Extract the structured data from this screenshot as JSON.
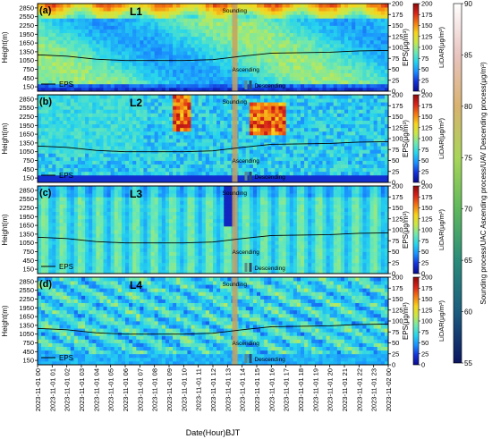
{
  "chart_data": {
    "type": "heatmap",
    "shared_y_ticks": [
      150,
      450,
      750,
      1050,
      1350,
      1650,
      1950,
      2250,
      2550,
      2850
    ],
    "shared_y_label": "Height(m)",
    "eps_ticks": [
      0,
      25,
      50,
      75,
      100,
      125,
      150,
      175,
      200
    ],
    "eps_axis_label": "EPS(μg/m³)",
    "lidar_ticks": [
      0,
      25,
      50,
      75,
      100,
      125,
      150,
      175,
      200
    ],
    "lidar_label": "LiDAR(μg/m³)",
    "xlabel": "Date(Hour)BJT",
    "x_ticks": [
      "2023-11-01 00",
      "2023-11-01 01",
      "2023-11-01 02",
      "2023-11-01 03",
      "2023-11-01 04",
      "2023-11-01 05",
      "2023-11-01 06",
      "2023-11-01 07",
      "2023-11-01 08",
      "2023-11-01 09",
      "2023-11-01 10",
      "2023-11-01 11",
      "2023-11-01 12",
      "2023-11-01 13",
      "2023-11-01 14",
      "2023-11-01 15",
      "2023-11-01 16",
      "2023-11-01 17",
      "2023-11-01 18",
      "2023-11-01 19",
      "2023-11-01 20",
      "2023-11-01 21",
      "2023-11-01 22",
      "2023-11-01 23",
      "2023-11-02 00"
    ],
    "right_colorbar": {
      "label": "Sounding process/UAC Ascending process/UAV Descending process(μg/m³)",
      "ticks": [
        55,
        60,
        65,
        70,
        75,
        80,
        85,
        90
      ],
      "range": [
        55,
        90
      ]
    },
    "panels": [
      {
        "tag": "(a)",
        "name": "L1",
        "band": "upper",
        "eps_hours": [
          0,
          2,
          4,
          6,
          8,
          10,
          12,
          14,
          16,
          18,
          20,
          22,
          24
        ],
        "eps_values": [
          83,
          80,
          73,
          70,
          70,
          70,
          72,
          80,
          87,
          88,
          89,
          92,
          93
        ]
      },
      {
        "tag": "(b)",
        "name": "L2",
        "band": "clouds",
        "eps_hours": [
          0,
          2,
          4,
          6,
          8,
          10,
          12,
          14,
          16,
          18,
          20,
          22,
          24
        ],
        "eps_values": [
          83,
          80,
          73,
          70,
          70,
          70,
          72,
          80,
          87,
          88,
          89,
          92,
          93
        ]
      },
      {
        "tag": "(c)",
        "name": "L3",
        "band": "clean",
        "eps_hours": [
          0,
          2,
          4,
          6,
          8,
          10,
          12,
          14,
          16,
          18,
          20,
          22,
          24
        ],
        "eps_values": [
          83,
          80,
          73,
          70,
          70,
          70,
          72,
          80,
          87,
          88,
          89,
          92,
          93
        ]
      },
      {
        "tag": "(d)",
        "name": "L4",
        "band": "speckle",
        "eps_hours": [
          0,
          2,
          4,
          6,
          8,
          10,
          12,
          14,
          16,
          18,
          20,
          22,
          24
        ],
        "eps_values": [
          83,
          80,
          73,
          70,
          70,
          70,
          72,
          80,
          87,
          88,
          89,
          92,
          93
        ]
      }
    ],
    "legend_eps": "EPS",
    "label_sounding": "Sounding",
    "label_ascending": "Ascending",
    "label_descending": "Descending",
    "colormap": [
      "#0b0b8c",
      "#1432d8",
      "#1a8fff",
      "#26d4ee",
      "#6ee8b0",
      "#c8e84a",
      "#f7d51c",
      "#f47a12",
      "#d9231a",
      "#8c0b0b"
    ],
    "right_colormap": [
      "#0b1560",
      "#1b5c7e",
      "#2a8c7a",
      "#5fb85c",
      "#a8d55a",
      "#d8b270",
      "#e8c4c0",
      "#ffffff"
    ]
  }
}
